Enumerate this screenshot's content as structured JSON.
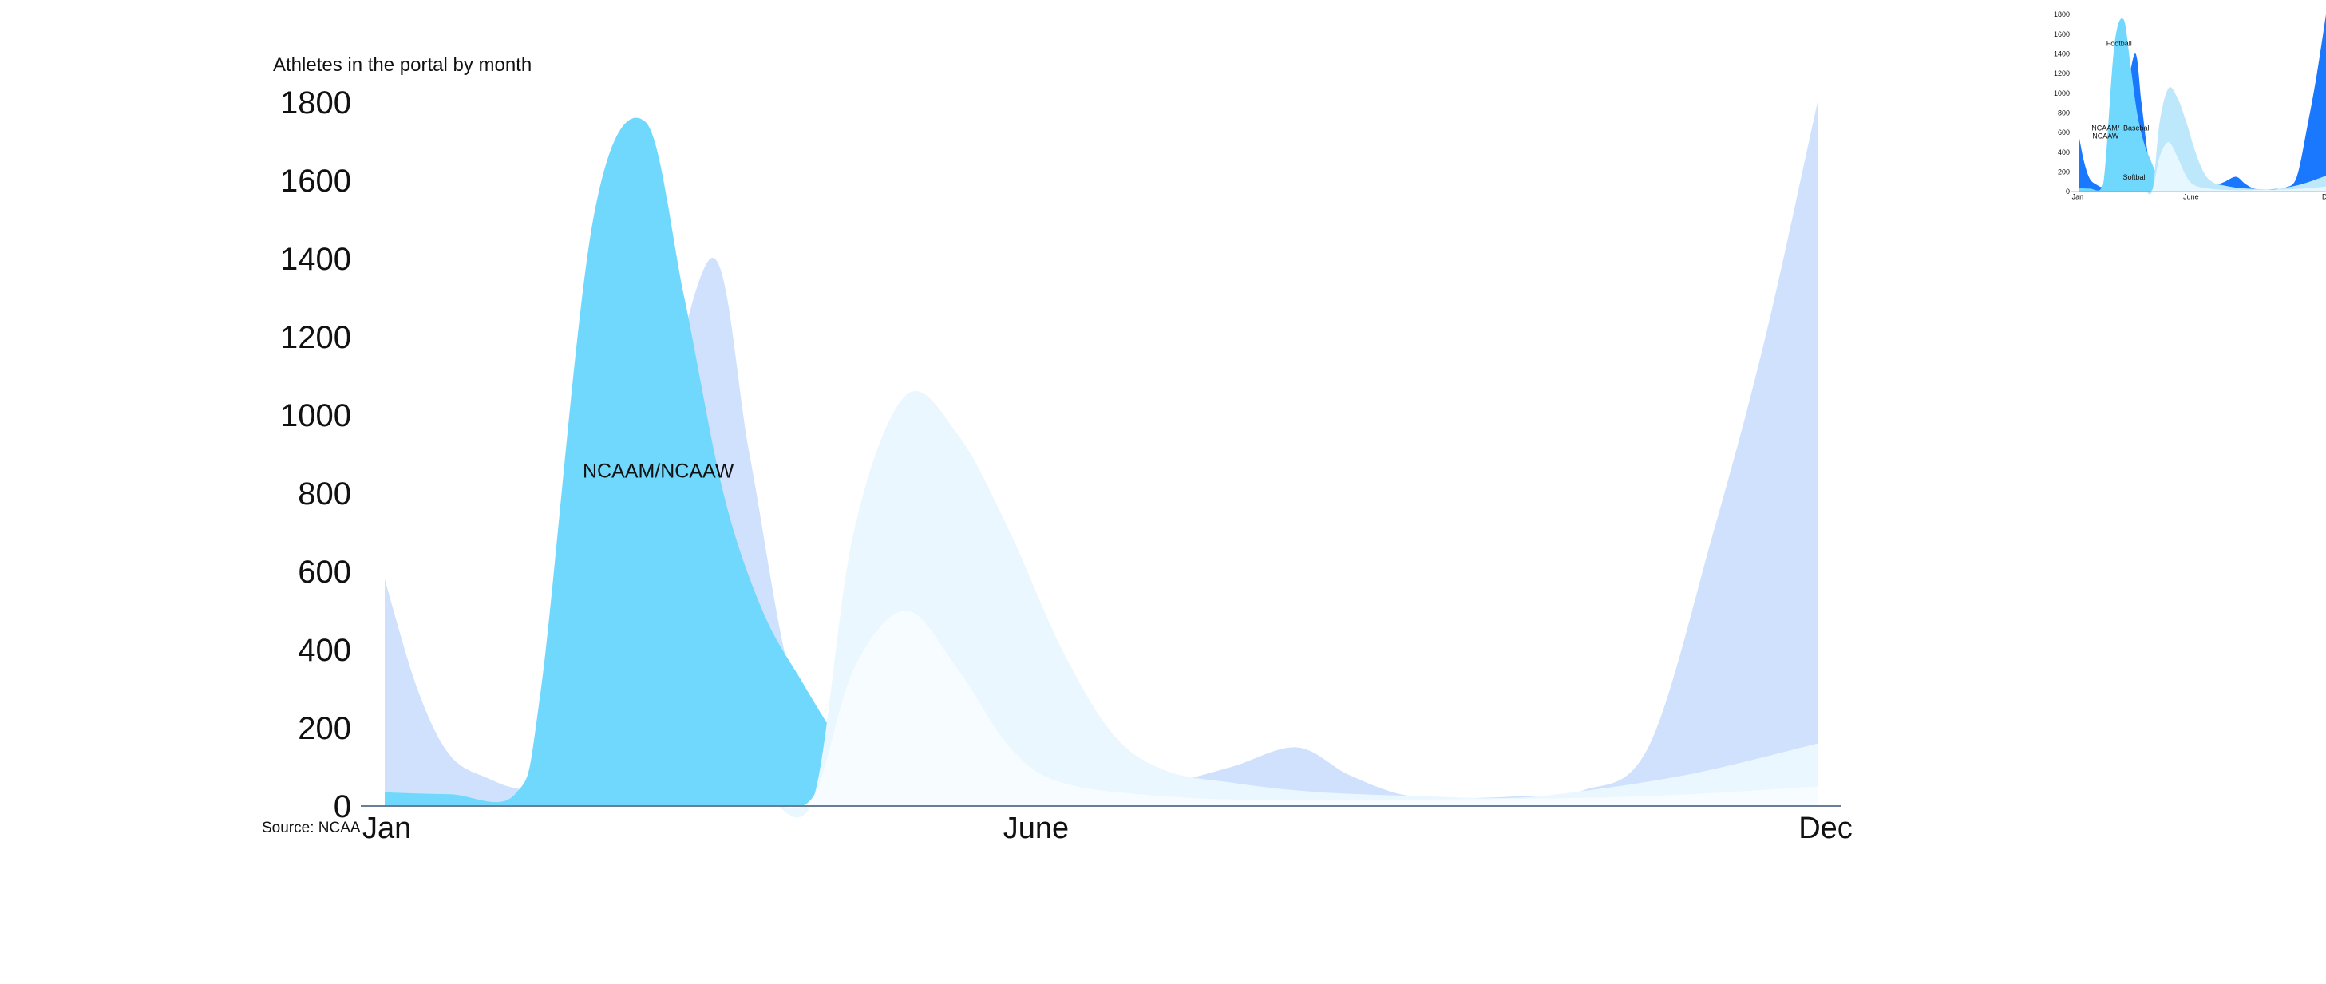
{
  "chart_data": {
    "type": "area",
    "title": "Athletes in the portal by month",
    "source": "Source: NCAA",
    "xlabel": "",
    "ylabel": "",
    "ylim": [
      0,
      1800
    ],
    "y_ticks": [
      0,
      200,
      400,
      600,
      800,
      1000,
      1200,
      1400,
      1600,
      1800
    ],
    "x_ticks": [
      "Jan",
      "June",
      "Dec"
    ],
    "grid": false,
    "legend": "none",
    "series": [
      {
        "name": "Football",
        "color": "#cfe1fd",
        "points": [
          [
            1.0,
            580
          ],
          [
            1.25,
            300
          ],
          [
            1.5,
            130
          ],
          [
            1.8,
            70
          ],
          [
            2.1,
            40
          ],
          [
            2.7,
            30
          ],
          [
            2.9,
            60
          ],
          [
            3.0,
            700
          ],
          [
            3.5,
            1400
          ],
          [
            3.8,
            900
          ],
          [
            4.1,
            350
          ],
          [
            4.4,
            120
          ],
          [
            4.7,
            40
          ],
          [
            5.2,
            20
          ],
          [
            6.0,
            15
          ],
          [
            7.0,
            60
          ],
          [
            7.5,
            100
          ],
          [
            8.0,
            150
          ],
          [
            8.4,
            80
          ],
          [
            8.8,
            30
          ],
          [
            9.2,
            20
          ],
          [
            9.7,
            25
          ],
          [
            10.2,
            40
          ],
          [
            10.7,
            150
          ],
          [
            11.2,
            700
          ],
          [
            11.6,
            1200
          ],
          [
            12.0,
            1800
          ]
        ]
      },
      {
        "name": "NCAAM/NCAAW",
        "color": "#6fd8fc",
        "label": "NCAAM/NCAAW",
        "points": [
          [
            1.0,
            35
          ],
          [
            1.5,
            30
          ],
          [
            2.0,
            30
          ],
          [
            2.2,
            300
          ],
          [
            2.6,
            1500
          ],
          [
            3.0,
            1750
          ],
          [
            3.3,
            1300
          ],
          [
            3.6,
            800
          ],
          [
            3.9,
            500
          ],
          [
            4.2,
            320
          ],
          [
            4.5,
            160
          ],
          [
            4.8,
            40
          ],
          [
            5.2,
            10
          ],
          [
            6.0,
            5
          ],
          [
            8.0,
            0
          ],
          [
            12.0,
            0
          ]
        ]
      },
      {
        "name": "Baseball",
        "color": "#eaf7ff",
        "points": [
          [
            4.0,
            0
          ],
          [
            4.3,
            30
          ],
          [
            4.6,
            700
          ],
          [
            5.0,
            1050
          ],
          [
            5.4,
            950
          ],
          [
            5.8,
            700
          ],
          [
            6.2,
            400
          ],
          [
            6.6,
            180
          ],
          [
            7.0,
            90
          ],
          [
            7.5,
            60
          ],
          [
            8.0,
            40
          ],
          [
            8.5,
            30
          ],
          [
            9.0,
            25
          ],
          [
            9.5,
            20
          ],
          [
            10.0,
            30
          ],
          [
            11.0,
            80
          ],
          [
            12.0,
            160
          ]
        ]
      },
      {
        "name": "Softball",
        "color": "#f6fcff",
        "points": [
          [
            4.0,
            0
          ],
          [
            4.3,
            30
          ],
          [
            4.6,
            350
          ],
          [
            5.0,
            500
          ],
          [
            5.4,
            350
          ],
          [
            5.8,
            150
          ],
          [
            6.2,
            60
          ],
          [
            7.0,
            25
          ],
          [
            8.0,
            15
          ],
          [
            10.0,
            20
          ],
          [
            11.0,
            30
          ],
          [
            12.0,
            50
          ]
        ]
      }
    ],
    "inset": {
      "x_ticks": [
        "Jan",
        "June",
        "Dec"
      ],
      "y_ticks": [
        0,
        200,
        400,
        600,
        800,
        1000,
        1200,
        1400,
        1600,
        1800
      ],
      "labels": [
        "Football",
        "NCAAM/\nNCAAW",
        "Baseball",
        "Softball"
      ],
      "colors": {
        "Football": "#1a78ff",
        "NCAAM/NCAAW": "#6fd8fc",
        "Baseball": "#bde7fb",
        "Softball": "#e6f7ff"
      }
    }
  }
}
